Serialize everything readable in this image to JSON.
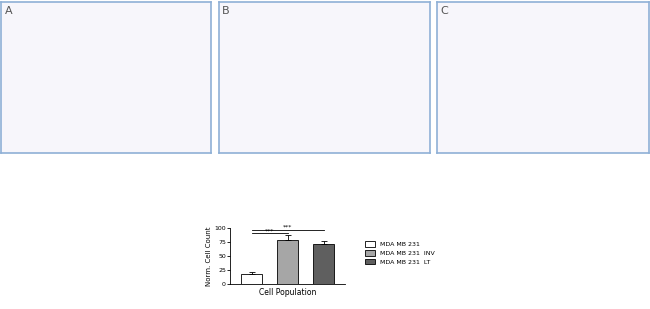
{
  "panels": {
    "labels": [
      "A",
      "B",
      "C"
    ]
  },
  "chart_data": {
    "type": "bar",
    "x_label": "Cell Population",
    "y_label": "Norm. Cell Count",
    "ylim": [
      0,
      100
    ],
    "yticks": [
      0,
      25,
      50,
      75,
      100
    ],
    "tick_labels": "y",
    "legend": "center left",
    "series": [
      {
        "name": "MDA MB 231",
        "color": "#ffffff",
        "values": [
          17
        ],
        "error": [
          5
        ]
      },
      {
        "name": "MDA MB 231  INV",
        "color": "#a6a6a6",
        "values": [
          78
        ],
        "error": [
          10
        ]
      },
      {
        "name": "MDA MB 231  LT",
        "color": "#5f5f5f",
        "values": [
          72
        ],
        "error": [
          4
        ]
      }
    ],
    "annotations": [
      {
        "text": "***",
        "from": 0,
        "to": 1
      },
      {
        "text": "***",
        "from": 0,
        "to": 2
      }
    ]
  }
}
